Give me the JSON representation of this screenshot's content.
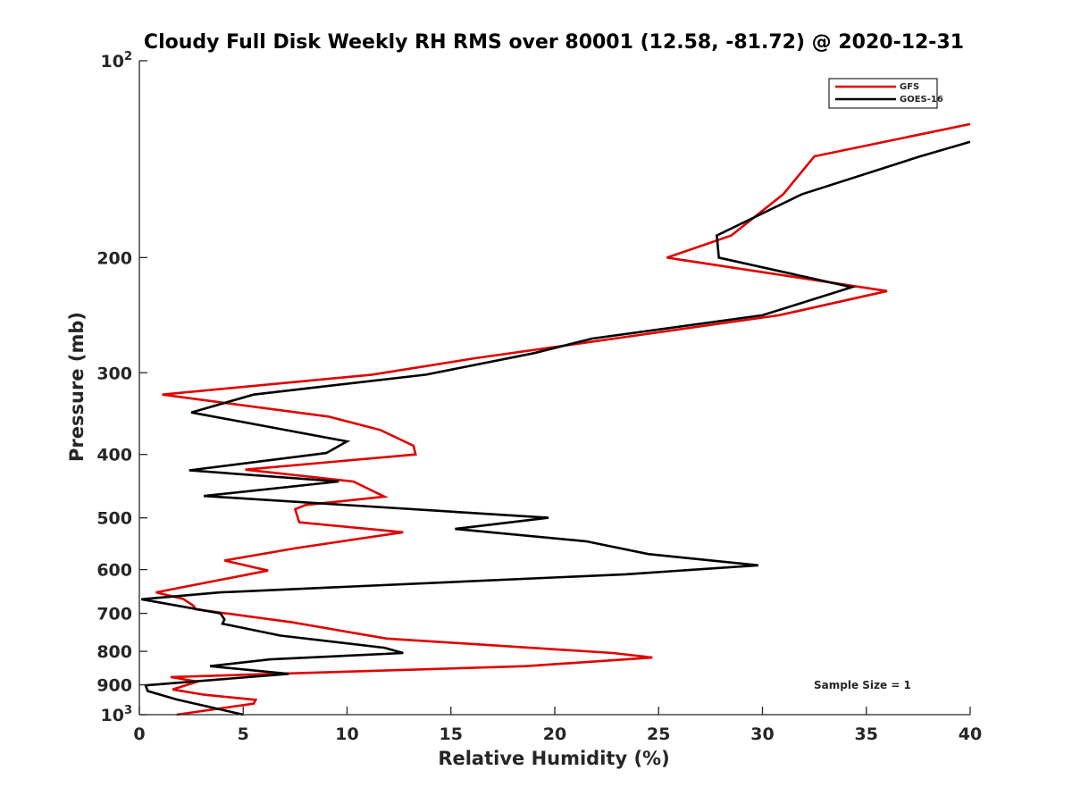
{
  "chart_data": {
    "type": "line",
    "title": "Cloudy Full Disk Weekly RH RMS over 80001 (12.58, -81.72) @ 2020-12-31",
    "xlabel": "Relative Humidity (%)",
    "ylabel": "Pressure (mb)",
    "xlim": [
      0,
      40
    ],
    "ylim": [
      100,
      1000
    ],
    "y_scale": "log",
    "y_reversed": true,
    "grid": false,
    "legend_position": "top-right",
    "x_ticks": [
      0,
      5,
      10,
      15,
      20,
      25,
      30,
      35,
      40
    ],
    "x_tick_labels": [
      "0",
      "5",
      "10",
      "15",
      "20",
      "25",
      "30",
      "35",
      "40"
    ],
    "y_ticks": [
      100,
      200,
      300,
      400,
      500,
      600,
      700,
      800,
      900,
      1000
    ],
    "y_tick_labels": [
      {
        "base": "10",
        "sup": "2"
      },
      {
        "base": "200",
        "sup": ""
      },
      {
        "base": "300",
        "sup": ""
      },
      {
        "base": "400",
        "sup": ""
      },
      {
        "base": "500",
        "sup": ""
      },
      {
        "base": "600",
        "sup": ""
      },
      {
        "base": "700",
        "sup": ""
      },
      {
        "base": "800",
        "sup": ""
      },
      {
        "base": "900",
        "sup": ""
      },
      {
        "base": "10",
        "sup": "3"
      }
    ],
    "annotation": "Sample Size = 1",
    "series": [
      {
        "name": "GFS",
        "color": "#e00000",
        "points": [
          [
            40.0,
            125
          ],
          [
            32.5,
            140
          ],
          [
            31.0,
            160
          ],
          [
            28.5,
            185
          ],
          [
            25.4,
            200
          ],
          [
            36.0,
            225
          ],
          [
            30.8,
            245
          ],
          [
            16.2,
            285
          ],
          [
            11.2,
            302
          ],
          [
            1.1,
            324
          ],
          [
            9.1,
            350
          ],
          [
            11.6,
            367
          ],
          [
            13.2,
            388
          ],
          [
            13.3,
            400
          ],
          [
            5.1,
            422
          ],
          [
            10.3,
            440
          ],
          [
            11.8,
            464
          ],
          [
            8.0,
            478
          ],
          [
            7.5,
            485
          ],
          [
            7.7,
            508
          ],
          [
            12.7,
            526
          ],
          [
            7.6,
            556
          ],
          [
            4.1,
            581
          ],
          [
            6.2,
            602
          ],
          [
            0.8,
            650
          ],
          [
            2.1,
            665
          ],
          [
            2.6,
            681
          ],
          [
            2.7,
            690
          ],
          [
            7.3,
            722
          ],
          [
            11.9,
            765
          ],
          [
            22.8,
            805
          ],
          [
            24.7,
            818
          ],
          [
            18.6,
            843
          ],
          [
            1.5,
            876
          ],
          [
            2.8,
            890
          ],
          [
            1.6,
            915
          ],
          [
            3.1,
            932
          ],
          [
            5.6,
            949
          ],
          [
            5.5,
            962
          ],
          [
            1.8,
            1000
          ]
        ]
      },
      {
        "name": "GOES-16",
        "color": "#000000",
        "points": [
          [
            40.0,
            133
          ],
          [
            37.6,
            140
          ],
          [
            31.9,
            160
          ],
          [
            27.8,
            185
          ],
          [
            27.9,
            200
          ],
          [
            34.3,
            222
          ],
          [
            30.0,
            245
          ],
          [
            21.8,
            266
          ],
          [
            19.0,
            280
          ],
          [
            13.8,
            302
          ],
          [
            5.5,
            324
          ],
          [
            2.5,
            345
          ],
          [
            10.0,
            382
          ],
          [
            9.0,
            398
          ],
          [
            2.4,
            423
          ],
          [
            9.6,
            440
          ],
          [
            3.1,
            463
          ],
          [
            19.7,
            500
          ],
          [
            15.2,
            520
          ],
          [
            21.5,
            543
          ],
          [
            24.5,
            568
          ],
          [
            29.8,
            591
          ],
          [
            23.4,
            610
          ],
          [
            3.9,
            650
          ],
          [
            0.1,
            666
          ],
          [
            3.9,
            700
          ],
          [
            4.1,
            715
          ],
          [
            4.0,
            726
          ],
          [
            6.8,
            757
          ],
          [
            11.8,
            790
          ],
          [
            12.7,
            805
          ],
          [
            6.3,
            823
          ],
          [
            3.4,
            843
          ],
          [
            7.2,
            866
          ],
          [
            0.3,
            902
          ],
          [
            0.4,
            920
          ],
          [
            1.8,
            948
          ],
          [
            5.0,
            1000
          ]
        ]
      }
    ]
  }
}
